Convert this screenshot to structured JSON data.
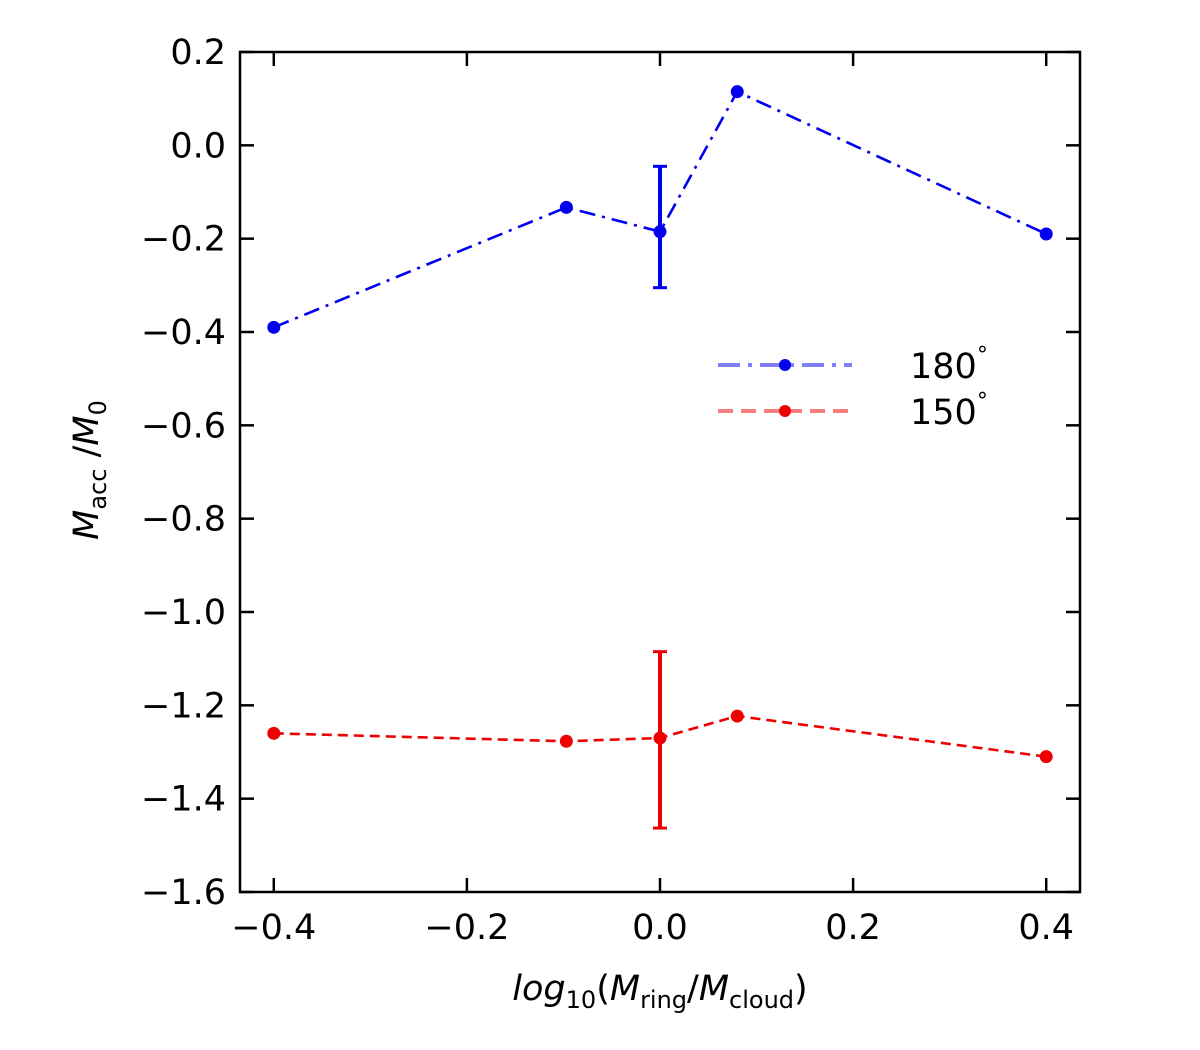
{
  "chart_data": {
    "type": "line",
    "title": "",
    "xlabel": {
      "prefix": "log",
      "prefix_sub": "10",
      "open": "(",
      "m1": "M",
      "m1_sub": "ring",
      "slash": "/",
      "m2": "M",
      "m2_sub": "cloud",
      "close": ")"
    },
    "ylabel": {
      "m1": "M",
      "m1_sub": "acc",
      "slash": " /",
      "m2": "M",
      "m2_sub": "0"
    },
    "xlim": [
      -0.435,
      0.435
    ],
    "ylim": [
      -1.6,
      0.2
    ],
    "xticks": [
      -0.4,
      -0.2,
      0.0,
      0.2,
      0.4
    ],
    "xtick_labels": [
      "−0.4",
      "−0.2",
      "0.0",
      "0.2",
      "0.4"
    ],
    "yticks": [
      0.2,
      0.0,
      -0.2,
      -0.4,
      -0.6,
      -0.8,
      -1.0,
      -1.2,
      -1.4,
      -1.6
    ],
    "ytick_labels": [
      "0.2",
      "0.0",
      "−0.2",
      "−0.4",
      "−0.6",
      "−0.8",
      "−1.0",
      "−1.2",
      "−1.4",
      "−1.6"
    ],
    "legend_position": "center-right",
    "series": [
      {
        "name": "180°",
        "label_main": "180",
        "label_sup": "°",
        "color": "#0000ee",
        "linestyle": "dashdot",
        "x": [
          -0.4,
          -0.097,
          0.0,
          0.08,
          0.4
        ],
        "y": [
          -0.39,
          -0.133,
          -0.185,
          0.115,
          -0.19
        ],
        "errorbar": {
          "x": 0.0,
          "low": -0.305,
          "high": -0.045
        }
      },
      {
        "name": "150°",
        "label_main": "150",
        "label_sup": "°",
        "color": "#ee0000",
        "linestyle": "dashed",
        "x": [
          -0.4,
          -0.097,
          0.0,
          0.08,
          0.4
        ],
        "y": [
          -1.26,
          -1.277,
          -1.27,
          -1.223,
          -1.31
        ],
        "errorbar": {
          "x": 0.0,
          "low": -1.463,
          "high": -1.085
        }
      }
    ]
  }
}
